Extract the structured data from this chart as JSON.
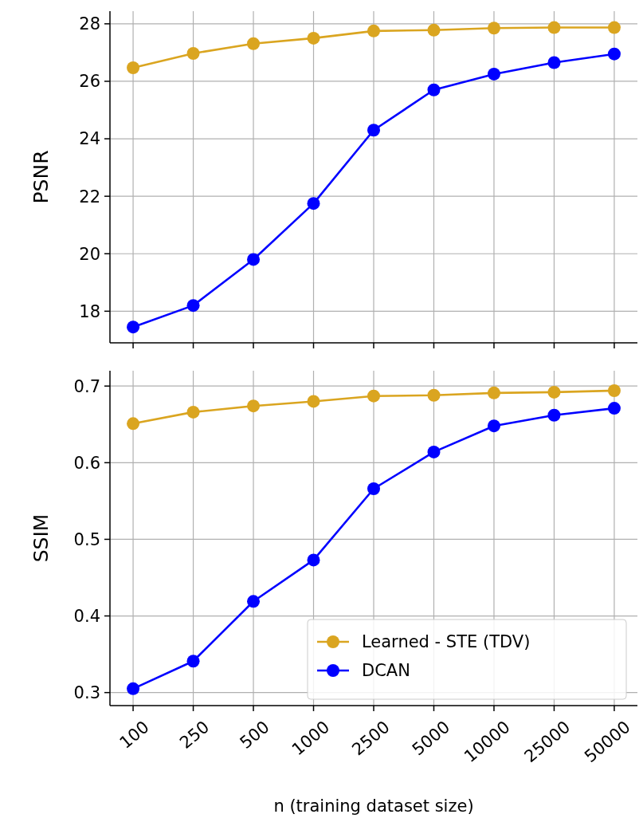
{
  "chart_data": [
    {
      "type": "line",
      "ylabel": "PSNR",
      "categories": [
        "100",
        "250",
        "500",
        "1000",
        "2500",
        "5000",
        "10000",
        "25000",
        "50000"
      ],
      "ylim": [
        16.9,
        28.44
      ],
      "yticks": [
        18,
        20,
        22,
        24,
        26,
        28
      ],
      "grid": true,
      "legend": false,
      "marker": "circle",
      "line_style": "solid",
      "tick_labels": "y",
      "series": [
        {
          "color": "#daa520",
          "values": [
            26.47,
            26.97,
            27.31,
            27.5,
            27.75,
            27.78,
            27.85,
            27.87,
            27.87
          ]
        },
        {
          "color": "#0000ff",
          "values": [
            17.45,
            18.2,
            19.8,
            21.75,
            24.3,
            25.7,
            26.25,
            26.65,
            26.95
          ]
        }
      ]
    },
    {
      "type": "line",
      "ylabel": "SSIM",
      "xlabel": "n (training dataset size)",
      "categories": [
        "100",
        "250",
        "500",
        "1000",
        "2500",
        "5000",
        "10000",
        "25000",
        "50000"
      ],
      "ylim": [
        0.283,
        0.72
      ],
      "yticks": [
        0.3,
        0.4,
        0.5,
        0.6,
        0.7
      ],
      "grid": true,
      "legend": "bottom right",
      "marker": "circle",
      "line_style": "solid",
      "series": [
        {
          "name": "Learned - STE (TDV)",
          "color": "#daa520",
          "values": [
            0.651,
            0.666,
            0.674,
            0.68,
            0.687,
            0.688,
            0.691,
            0.692,
            0.694
          ]
        },
        {
          "name": "DCAN",
          "color": "#0000ff",
          "values": [
            0.305,
            0.341,
            0.419,
            0.473,
            0.566,
            0.614,
            0.648,
            0.662,
            0.671
          ]
        }
      ]
    }
  ]
}
